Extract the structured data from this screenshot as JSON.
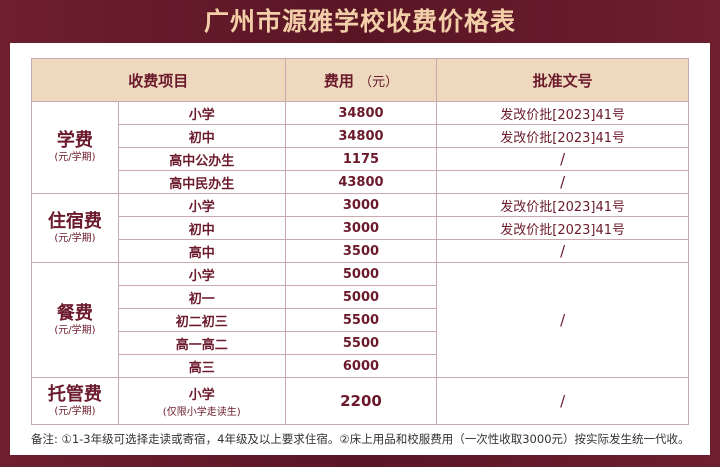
{
  "title": "广州市源雅学校收费价格表",
  "headers": {
    "item": "收费项目",
    "fee": "费用",
    "fee_unit": "（元）",
    "approval": "批准文号"
  },
  "groups": [
    {
      "name": "学费",
      "unit": "(元/学期)",
      "rows": [
        {
          "level": "小学",
          "fee": "34800",
          "approval": "发改价批[2023]41号"
        },
        {
          "level": "初中",
          "fee": "34800",
          "approval": "发改价批[2023]41号"
        },
        {
          "level": "高中公办生",
          "fee": "1175",
          "approval": "/"
        },
        {
          "level": "高中民办生",
          "fee": "43800",
          "approval": "/"
        }
      ]
    },
    {
      "name": "住宿费",
      "unit": "(元/学期)",
      "rows": [
        {
          "level": "小学",
          "fee": "3000",
          "approval": "发改价批[2023]41号"
        },
        {
          "level": "初中",
          "fee": "3000",
          "approval": "发改价批[2023]41号"
        },
        {
          "level": "高中",
          "fee": "3500",
          "approval": "/"
        }
      ]
    },
    {
      "name": "餐费",
      "unit": "(元/学期)",
      "approval": "/",
      "rows": [
        {
          "level": "小学",
          "fee": "5000"
        },
        {
          "level": "初一",
          "fee": "5000"
        },
        {
          "level": "初二初三",
          "fee": "5500"
        },
        {
          "level": "高一高二",
          "fee": "5500"
        },
        {
          "level": "高三",
          "fee": "6000"
        }
      ]
    },
    {
      "name": "托管费",
      "unit": "(元/学期)",
      "rows": [
        {
          "level": "小学",
          "note": "(仅限小学走读生)",
          "fee": "2200",
          "approval": "/"
        }
      ]
    }
  ],
  "footnote": "备注: ①1-3年级可选择走读或寄宿，4年级及以上要求住宿。②床上用品和校服费用（一次性收取3000元）按实际发生统一代收。"
}
